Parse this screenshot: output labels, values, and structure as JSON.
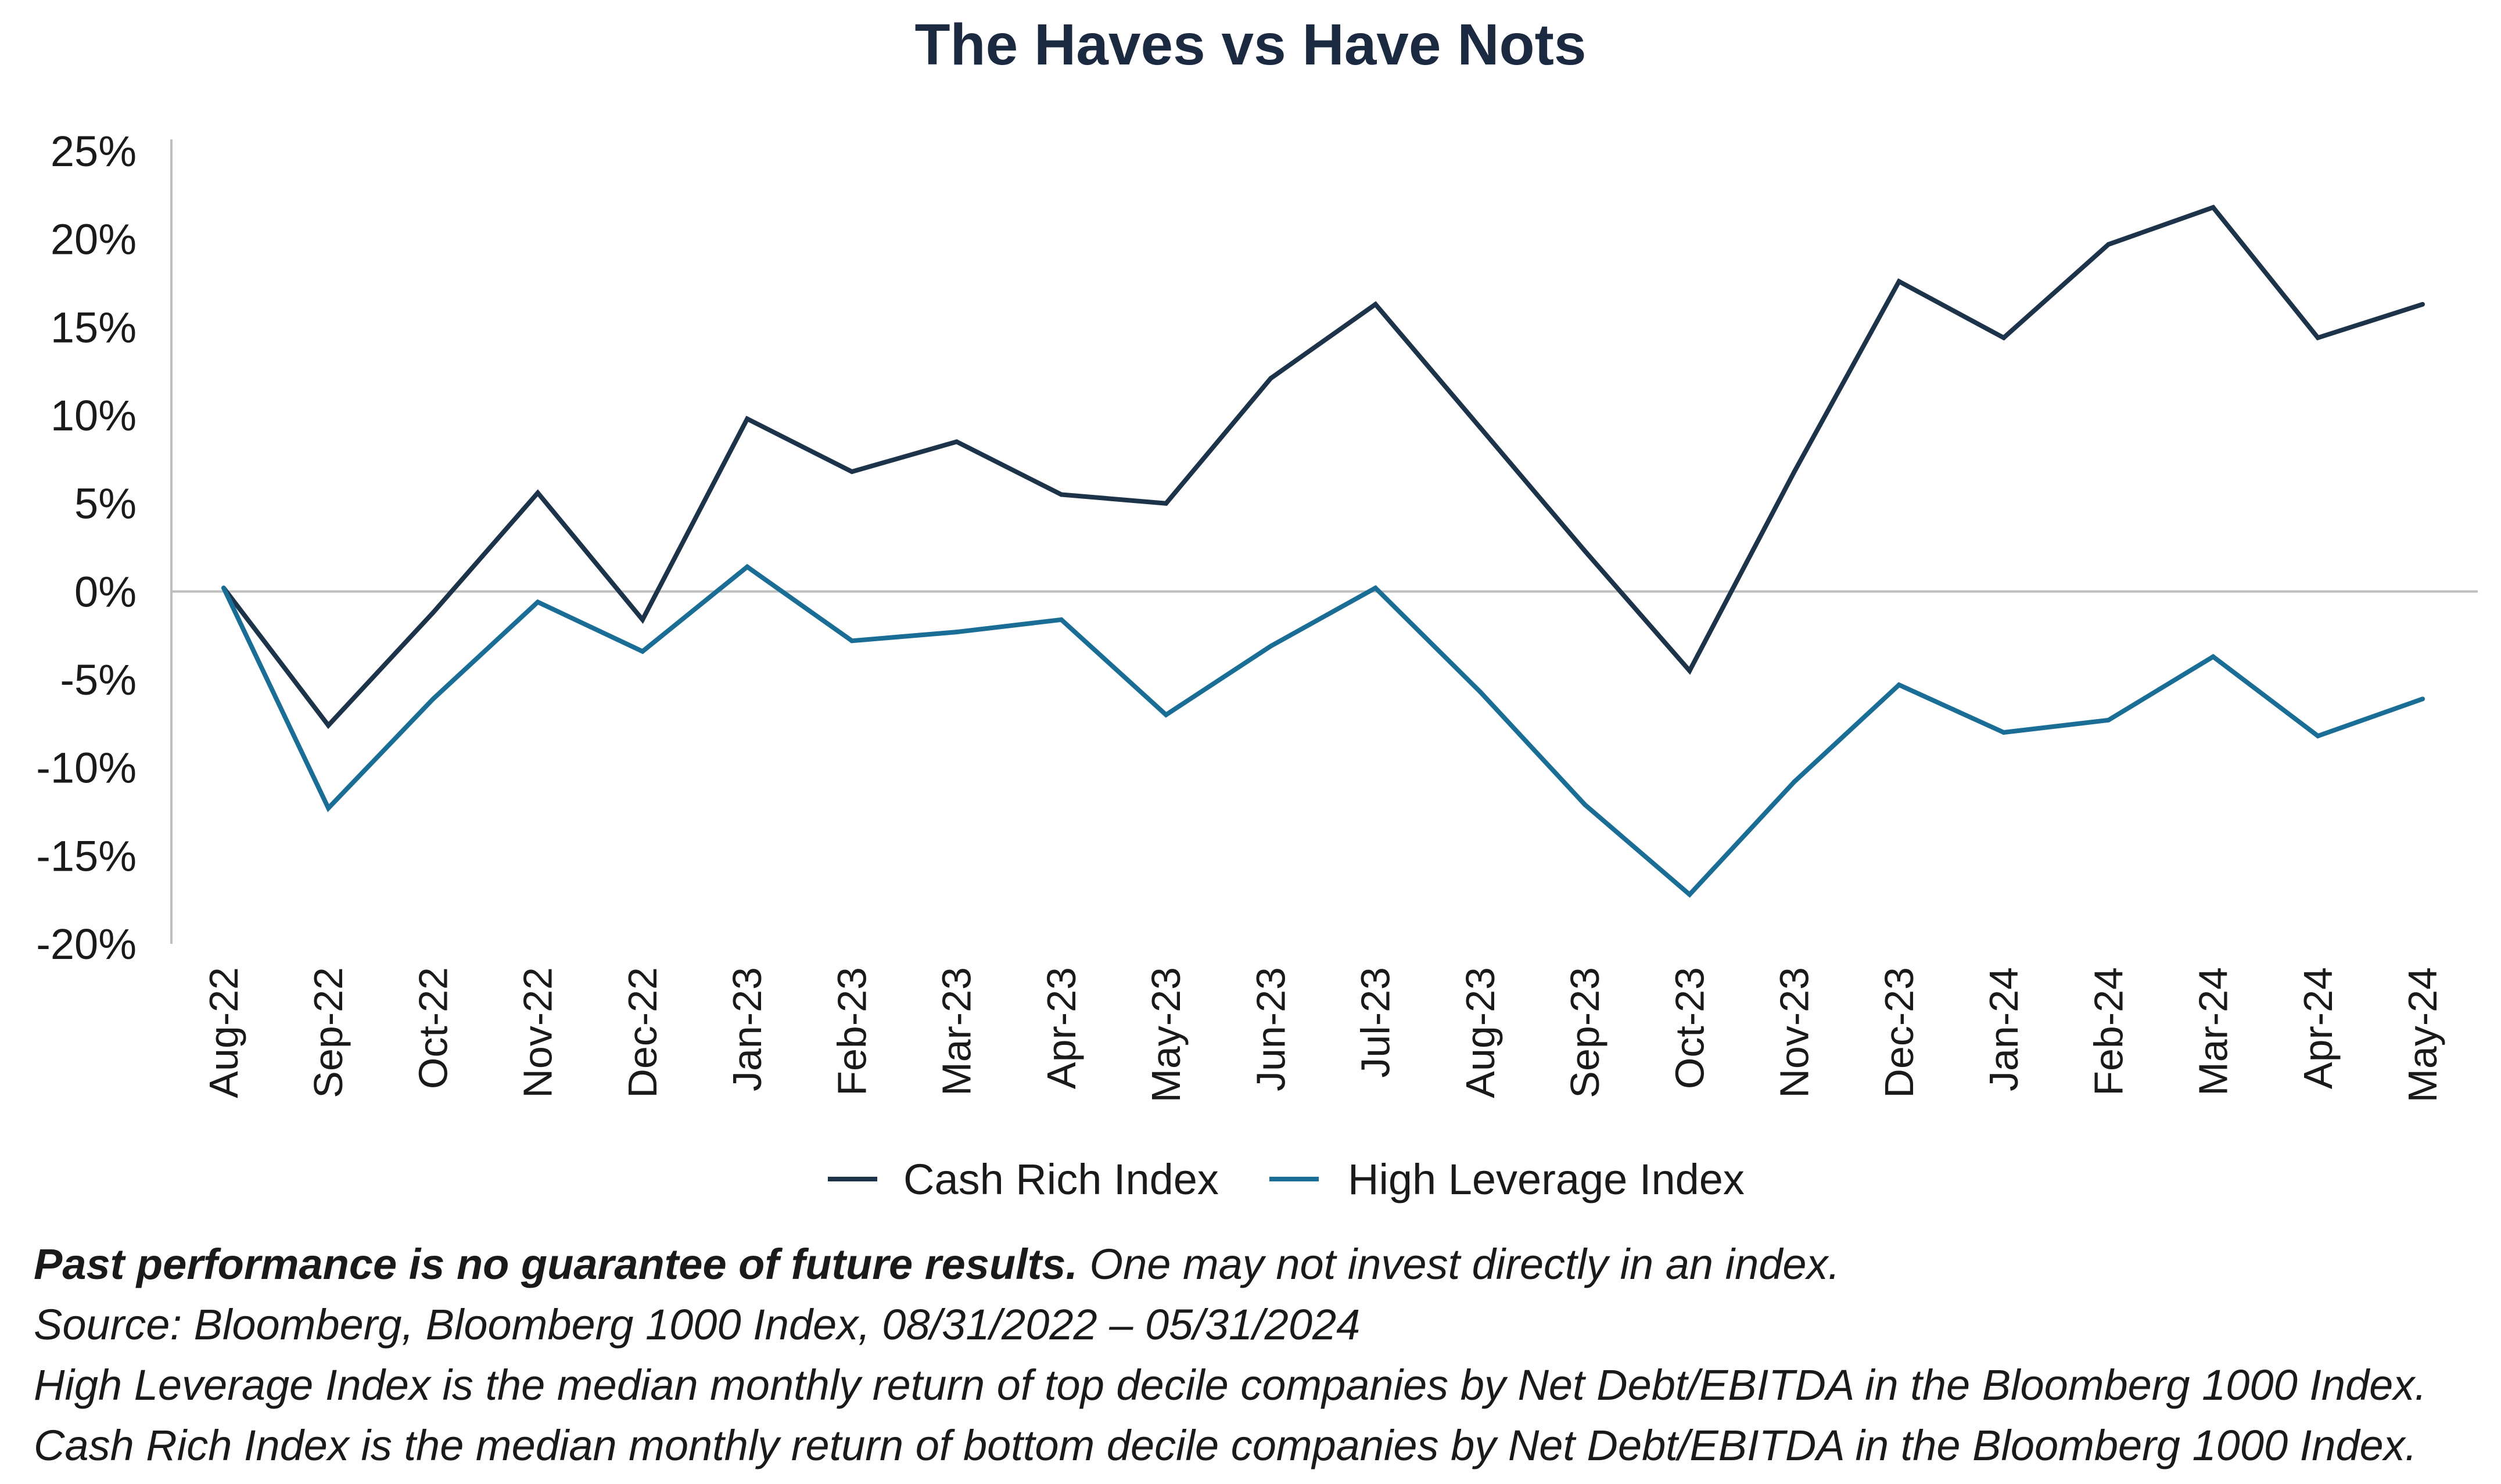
{
  "colors": {
    "cash_rich": "#1c3349",
    "high_leverage": "#1a6e96",
    "axis": "#bfbfbf"
  },
  "chart_data": {
    "type": "line",
    "title": "The Haves vs Have Nots",
    "xlabel": "",
    "ylabel": "",
    "ylim": [
      -20,
      25
    ],
    "yticks": [
      "25%",
      "20%",
      "15%",
      "10%",
      "5%",
      "0%",
      "-5%",
      "-10%",
      "-15%",
      "-20%"
    ],
    "categories": [
      "Aug-22",
      "Sep-22",
      "Oct-22",
      "Nov-22",
      "Dec-22",
      "Jan-23",
      "Feb-23",
      "Mar-23",
      "Apr-23",
      "May-23",
      "Jun-23",
      "Jul-23",
      "Aug-23",
      "Sep-23",
      "Oct-23",
      "Nov-23",
      "Dec-23",
      "Jan-24",
      "Feb-24",
      "Mar-24",
      "Apr-24",
      "May-24"
    ],
    "series": [
      {
        "name": "Cash Rich Index",
        "color": "#1c3349",
        "values": [
          0.2,
          -7.6,
          -1.2,
          5.6,
          -1.6,
          9.8,
          6.8,
          8.5,
          5.5,
          5.0,
          12.1,
          16.3,
          9.3,
          2.3,
          -4.5,
          6.8,
          17.6,
          14.4,
          19.7,
          21.8,
          14.4,
          16.3
        ]
      },
      {
        "name": "High Leverage Index",
        "color": "#1a6e96",
        "values": [
          0.2,
          -12.3,
          -6.1,
          -0.6,
          -3.4,
          1.4,
          -2.8,
          -2.3,
          -1.6,
          -7.0,
          -3.1,
          0.2,
          -5.7,
          -12.1,
          -17.2,
          -10.8,
          -5.3,
          -8.0,
          -7.3,
          -3.7,
          -8.2,
          -6.1
        ]
      }
    ],
    "legend_position": "bottom-center",
    "grid": false
  },
  "notes": {
    "line1_bold": "Past performance is no guarantee of future results.",
    "line1_rest": " One may not invest directly in an index.",
    "line2": "Source: Bloomberg, Bloomberg 1000 Index, 08/31/2022 – 05/31/2024",
    "line3": "High Leverage Index is the median monthly return of top decile companies by Net Debt/EBITDA in the Bloomberg 1000 Index.",
    "line4": "Cash Rich Index is the median monthly return of bottom decile companies by Net Debt/EBITDA in the Bloomberg 1000 Index."
  }
}
